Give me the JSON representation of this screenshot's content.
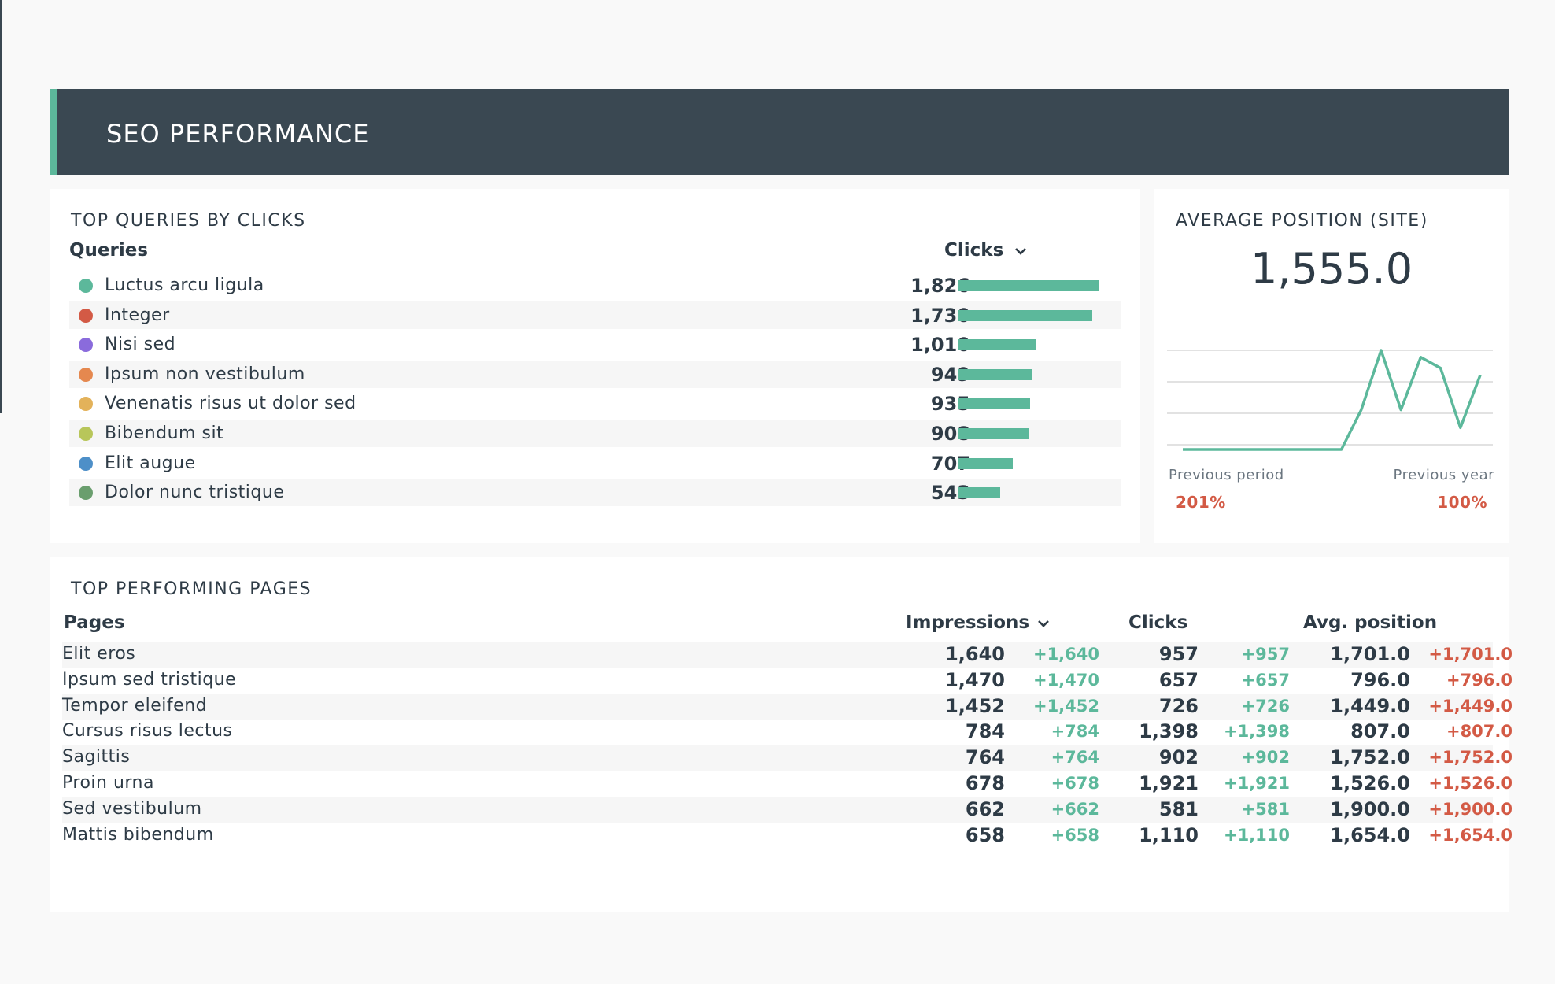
{
  "header": {
    "title": "SEO PERFORMANCE"
  },
  "queries": {
    "title": "TOP QUERIES BY CLICKS",
    "col_label": "Queries",
    "col_value": "Clicks",
    "max_value": 1826,
    "rows": [
      {
        "label": "Luctus arcu ligula",
        "value": "1,826",
        "num": 1826,
        "color": "#5cb89b"
      },
      {
        "label": "Integer",
        "value": "1,730",
        "num": 1730,
        "color": "#d35a45"
      },
      {
        "label": "Nisi sed",
        "value": "1,010",
        "num": 1010,
        "color": "#8a6bdc"
      },
      {
        "label": "Ipsum non vestibulum",
        "value": "949",
        "num": 949,
        "color": "#e5884f"
      },
      {
        "label": "Venenatis risus ut dolor sed",
        "value": "935",
        "num": 935,
        "color": "#e3b25a"
      },
      {
        "label": "Bibendum sit",
        "value": "908",
        "num": 908,
        "color": "#b8c65a"
      },
      {
        "label": "Elit augue",
        "value": "707",
        "num": 707,
        "color": "#4d8fc8"
      },
      {
        "label": "Dolor nunc tristique",
        "value": "543",
        "num": 543,
        "color": "#6a9e6e"
      }
    ]
  },
  "avg_position": {
    "title": "AVERAGE POSITION (SITE)",
    "value": "1,555.0",
    "prev_period_label": "Previous period",
    "prev_period_value": "201%",
    "prev_year_label": "Previous year",
    "prev_year_value": "100%",
    "series": [
      0,
      0,
      0,
      0,
      0,
      0,
      0,
      0,
      0,
      0.4,
      1.0,
      0.4,
      0.93,
      0.82,
      0.22,
      0.75
    ]
  },
  "pages": {
    "title": "TOP PERFORMING PAGES",
    "col_pages": "Pages",
    "col_impressions": "Impressions",
    "col_clicks": "Clicks",
    "col_avg": "Avg. position",
    "rows": [
      {
        "label": "Elit eros",
        "imp": "1,640",
        "imp_d": "+1,640",
        "clk": "957",
        "clk_d": "+957",
        "avg": "1,701.0",
        "avg_d": "+1,701.0"
      },
      {
        "label": "Ipsum sed tristique",
        "imp": "1,470",
        "imp_d": "+1,470",
        "clk": "657",
        "clk_d": "+657",
        "avg": "796.0",
        "avg_d": "+796.0"
      },
      {
        "label": "Tempor eleifend",
        "imp": "1,452",
        "imp_d": "+1,452",
        "clk": "726",
        "clk_d": "+726",
        "avg": "1,449.0",
        "avg_d": "+1,449.0"
      },
      {
        "label": "Cursus risus lectus",
        "imp": "784",
        "imp_d": "+784",
        "clk": "1,398",
        "clk_d": "+1,398",
        "avg": "807.0",
        "avg_d": "+807.0"
      },
      {
        "label": "Sagittis",
        "imp": "764",
        "imp_d": "+764",
        "clk": "902",
        "clk_d": "+902",
        "avg": "1,752.0",
        "avg_d": "+1,752.0"
      },
      {
        "label": "Proin urna",
        "imp": "678",
        "imp_d": "+678",
        "clk": "1,921",
        "clk_d": "+1,921",
        "avg": "1,526.0",
        "avg_d": "+1,526.0"
      },
      {
        "label": "Sed vestibulum",
        "imp": "662",
        "imp_d": "+662",
        "clk": "581",
        "clk_d": "+581",
        "avg": "1,900.0",
        "avg_d": "+1,900.0"
      },
      {
        "label": "Mattis bibendum",
        "imp": "658",
        "imp_d": "+658",
        "clk": "1,110",
        "clk_d": "+1,110",
        "avg": "1,654.0",
        "avg_d": "+1,654.0"
      }
    ]
  }
}
